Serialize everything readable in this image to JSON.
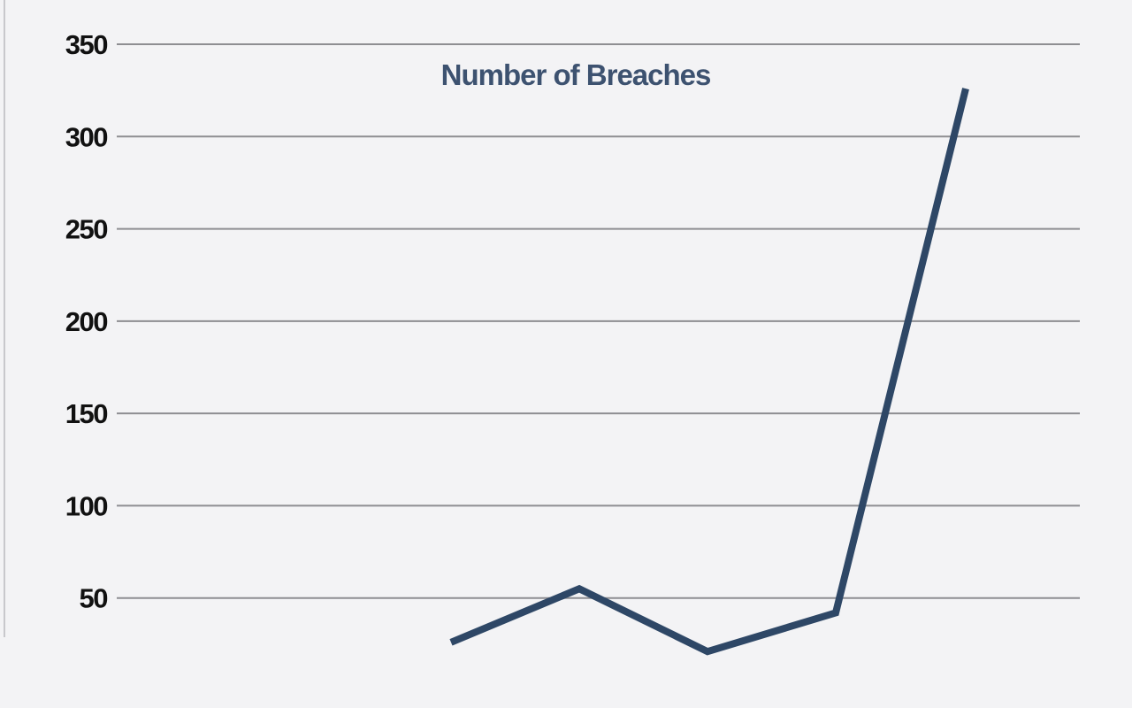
{
  "chart_data": {
    "type": "line",
    "title": "Number of Breaches",
    "xlabel": "",
    "ylabel": "",
    "ylim": [
      0,
      350
    ],
    "yticks": [
      50,
      100,
      150,
      200,
      250,
      300,
      350
    ],
    "ytick_labels": [
      "50",
      "100",
      "150",
      "200",
      "250",
      "300",
      "350"
    ],
    "grid": true,
    "series": [
      {
        "values": [
          26,
          55,
          21,
          42,
          326
        ],
        "color": "#2e4766"
      }
    ]
  }
}
